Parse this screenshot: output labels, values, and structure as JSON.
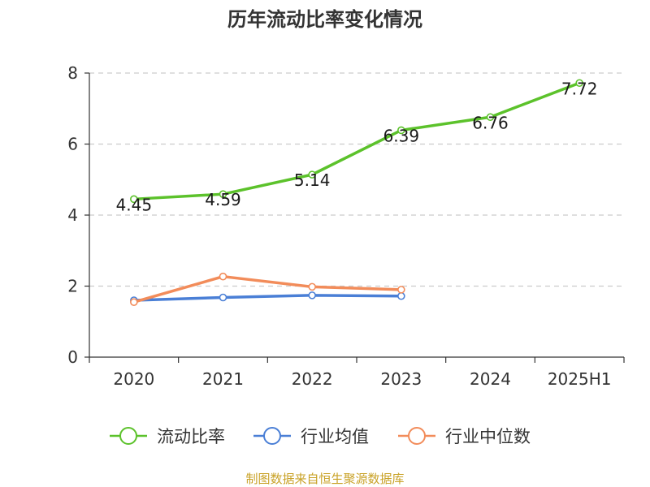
{
  "chart_data": {
    "type": "line",
    "title": "历年流动比率变化情况",
    "categories": [
      "2020",
      "2021",
      "2022",
      "2023",
      "2024",
      "2025H1"
    ],
    "ylim": [
      0,
      8
    ],
    "yticks": [
      "0",
      "2",
      "4",
      "6",
      "8"
    ],
    "grid": "horizontal dashed",
    "legend_position": "bottom",
    "series": [
      {
        "name": "流动比率",
        "color": "#5cc22b",
        "values": [
          4.45,
          4.59,
          5.14,
          6.39,
          6.76,
          7.72
        ],
        "labels": [
          "4.45",
          "4.59",
          "5.14",
          "6.39",
          "6.76",
          "7.72"
        ],
        "show_labels": true
      },
      {
        "name": "行业均值",
        "color": "#4a7fd6",
        "values": [
          1.6,
          1.68,
          1.74,
          1.72,
          null,
          null
        ],
        "show_labels": false
      },
      {
        "name": "行业中位数",
        "color": "#f28c5a",
        "values": [
          1.55,
          2.27,
          1.98,
          1.9,
          null,
          null
        ],
        "show_labels": false
      }
    ]
  },
  "source": "制图数据来自恒生聚源数据库"
}
